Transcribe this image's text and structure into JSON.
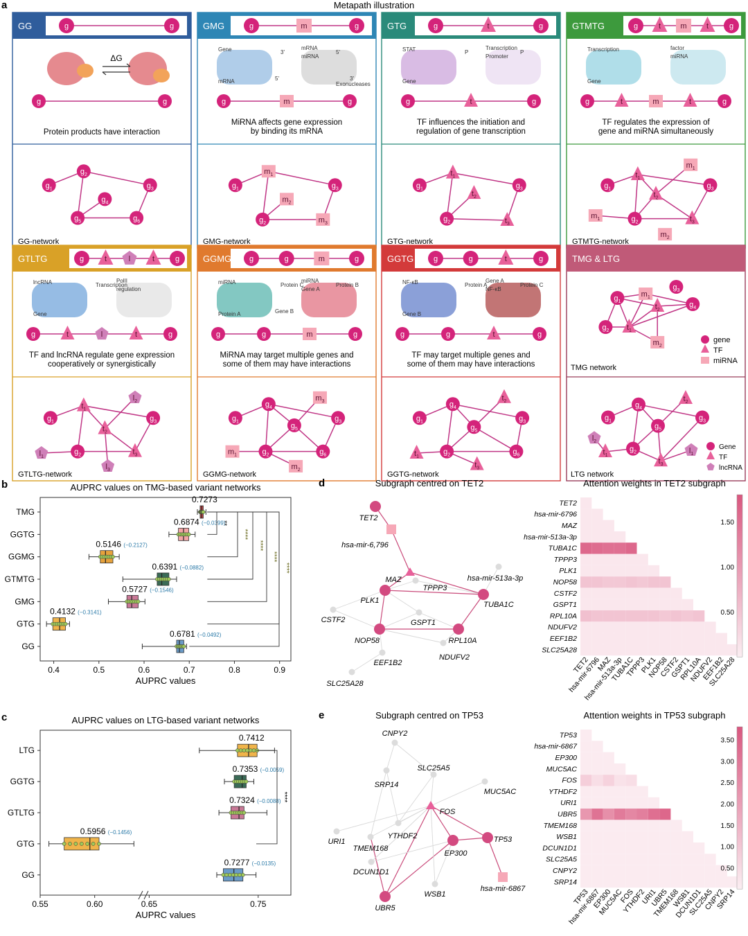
{
  "figure_title": "Metapath illustration",
  "panel_letters": {
    "a": "a",
    "b": "b",
    "c": "c",
    "d": "d",
    "e": "e"
  },
  "colors": {
    "gene": "#d4237a",
    "tf": "#e8609a",
    "mirna": "#f6a8b7",
    "lnc": "#cf7fb8",
    "edge": "#c03585"
  },
  "metapaths": [
    {
      "id": "GG",
      "title": "GG",
      "header_color": "#2f5d9c",
      "border_color": "#2f5d9c",
      "fill_color": "#2f5d9c",
      "path": [
        "g",
        "g"
      ],
      "desc": [
        "Protein products have interaction"
      ],
      "illus_label": "ΔG",
      "network_label": "GG-network",
      "bottom_path": [
        "g",
        "g"
      ]
    },
    {
      "id": "GMG",
      "title": "GMG",
      "header_color": "#2e86b5",
      "border_color": "#2e86b5",
      "fill_color": "#2e86b5",
      "path": [
        "g",
        "m",
        "g"
      ],
      "desc": [
        "MiRNA affects gene expression",
        "by binding its mRNA"
      ],
      "illus_texts": [
        "Gene",
        "mRNA",
        "miRNA",
        "mRNA",
        "3'",
        "5'",
        "5'",
        "3'",
        "Exonucleases"
      ],
      "network_label": "GMG-network",
      "bottom_path": [
        "g",
        "m",
        "g"
      ]
    },
    {
      "id": "GTG",
      "title": "GTG",
      "header_color": "#2a8a7a",
      "border_color": "#2a8a7a",
      "fill_color": "#2a8a7a",
      "path": [
        "g",
        "t",
        "g"
      ],
      "desc": [
        "TF influences the initiation and",
        "regulation of gene transcription"
      ],
      "illus_texts": [
        "STAT",
        "Transcription",
        "Promoter",
        "Gene",
        "P",
        "P"
      ],
      "network_label": "GTG-network",
      "bottom_path": [
        "g",
        "t",
        "g"
      ]
    },
    {
      "id": "GTMTG",
      "title": "GTMTG",
      "header_color": "#3d9a3d",
      "border_color": "#3d9a3d",
      "fill_color": "#3d9a3d",
      "path": [
        "g",
        "t",
        "m",
        "t",
        "g"
      ],
      "desc": [
        "TF regulates the expression of",
        "gene and miRNA simultaneously"
      ],
      "illus_texts": [
        "Transcription",
        "factor",
        "miRNA",
        "Gene"
      ],
      "network_label": "GTMTG-network",
      "bottom_path": [
        "g",
        "t",
        "m",
        "t",
        "g"
      ]
    },
    {
      "id": "GTLTG",
      "title": "GTLTG",
      "header_color": "#d9a127",
      "border_color": "#d9a127",
      "fill_color": "#d9a127",
      "path": [
        "g",
        "t",
        "l",
        "t",
        "g"
      ],
      "desc": [
        "TF and lncRNA regulate gene expression",
        "cooperatively or synergistically"
      ],
      "illus_texts": [
        "lncRNA",
        "PolII",
        "regulation",
        "Gene",
        "Transcription"
      ],
      "network_label": "GTLTG-network",
      "bottom_path": [
        "g",
        "t",
        "l",
        "t",
        "g"
      ]
    },
    {
      "id": "GGMG",
      "title": "GGMG",
      "header_color": "#e07a2e",
      "border_color": "#e07a2e",
      "fill_color": "#e07a2e",
      "path": [
        "g",
        "g",
        "m",
        "g"
      ],
      "desc": [
        "MiRNA may target multiple genes and",
        "some of them may have interactions"
      ],
      "illus_texts": [
        "miRNA",
        "miRNA",
        "Gene A",
        "Protein A",
        "Protein C",
        "Protein B",
        "Gene B"
      ],
      "network_label": "GGMG-network",
      "bottom_path": [
        "g",
        "g",
        "m",
        "g"
      ]
    },
    {
      "id": "GGTG",
      "title": "GGTG",
      "header_color": "#d33a3a",
      "border_color": "#d33a3a",
      "fill_color": "#d33a3a",
      "path": [
        "g",
        "g",
        "t",
        "g"
      ],
      "desc": [
        "TF may target multiple genes and",
        "some of them may have interactions"
      ],
      "illus_texts": [
        "NF-κB",
        "Gene A",
        "NF-κB",
        "Gene B",
        "Protein A",
        "Protein C"
      ],
      "network_label": "GGTG-network",
      "bottom_path": [
        "g",
        "g",
        "t",
        "g"
      ]
    },
    {
      "id": "TMGLTG",
      "title": "TMG & LTG",
      "header_color": "#c05a78",
      "border_color": "#9a3d5a",
      "fill_color": "#c05a78",
      "network_label": "TMG network",
      "bottom_label": "LTG network",
      "legend1": [
        "gene",
        "TF",
        "miRNA"
      ],
      "legend2": [
        "Gene",
        "TF",
        "lncRNA"
      ]
    }
  ],
  "panel_b": {
    "title": "AUPRC values on TMG-based variant networks",
    "xlabel": "AUPRC values",
    "xticks": [
      "0.4",
      "0.5",
      "0.6",
      "0.7",
      "0.8",
      "0.9"
    ],
    "rows": [
      {
        "name": "TMG",
        "median": 0.7273,
        "q1": 0.724,
        "q3": 0.731,
        "min": 0.718,
        "max": 0.737,
        "color": "#c94a4a",
        "label": "0.7273",
        "delta": ""
      },
      {
        "name": "GGTG",
        "median": 0.6874,
        "q1": 0.676,
        "q3": 0.699,
        "min": 0.655,
        "max": 0.713,
        "color": "#f4a6a6",
        "label": "0.6874",
        "delta": "(−0.0399)"
      },
      {
        "name": "GGMG",
        "median": 0.5146,
        "q1": 0.503,
        "q3": 0.531,
        "min": 0.478,
        "max": 0.545,
        "color": "#e6a23c",
        "label": "0.5146",
        "delta": "(−0.2127)"
      },
      {
        "name": "GTMTG",
        "median": 0.6391,
        "q1": 0.629,
        "q3": 0.655,
        "min": 0.553,
        "max": 0.672,
        "color": "#3a6b57",
        "label": "0.6391",
        "delta": "(−0.0882)"
      },
      {
        "name": "GMG",
        "median": 0.5727,
        "q1": 0.562,
        "q3": 0.587,
        "min": 0.521,
        "max": 0.602,
        "color": "#c87896",
        "label": "0.5727",
        "delta": "(−0.1546)"
      },
      {
        "name": "GTG",
        "median": 0.4132,
        "q1": 0.398,
        "q3": 0.426,
        "min": 0.384,
        "max": 0.435,
        "color": "#f0b44a",
        "label": "0.4132",
        "delta": "(−0.3141)"
      },
      {
        "name": "GG",
        "median": 0.6781,
        "q1": 0.672,
        "q3": 0.688,
        "min": 0.596,
        "max": 0.694,
        "color": "#6a9bc8",
        "label": "0.6781",
        "delta": "(−0.0492)"
      }
    ],
    "sig": [
      "**",
      "****",
      "****",
      "****",
      "****"
    ]
  },
  "panel_c": {
    "title": "AUPRC values on LTG-based variant networks",
    "xlabel": "AUPRC values",
    "xticks": [
      "0.55",
      "0.60",
      "0.65",
      "0.75"
    ],
    "rows": [
      {
        "name": "LTG",
        "median": 0.7412,
        "q1": 0.731,
        "q3": 0.749,
        "min": 0.696,
        "max": 0.765,
        "color": "#f0b44a",
        "label": "0.7412",
        "delta": ""
      },
      {
        "name": "GGTG",
        "median": 0.7353,
        "q1": 0.728,
        "q3": 0.739,
        "min": 0.719,
        "max": 0.746,
        "color": "#3a6b57",
        "label": "0.7353",
        "delta": "(−0.0059)"
      },
      {
        "name": "GTLTG",
        "median": 0.7324,
        "q1": 0.725,
        "q3": 0.737,
        "min": 0.714,
        "max": 0.758,
        "color": "#c87896",
        "label": "0.7324",
        "delta": "(−0.0088)"
      },
      {
        "name": "GTG",
        "median": 0.5956,
        "q1": 0.572,
        "q3": 0.604,
        "min": 0.558,
        "max": 0.636,
        "color": "#f0b44a",
        "label": "0.5956",
        "delta": "(−0.1456)"
      },
      {
        "name": "GG",
        "median": 0.7277,
        "q1": 0.718,
        "q3": 0.736,
        "min": 0.712,
        "max": 0.748,
        "color": "#6a9bc8",
        "label": "0.7277",
        "delta": "(−0.0135)"
      }
    ],
    "sig": "****"
  },
  "panel_d": {
    "title": "Subgraph centred on TET2",
    "heat_title": "Attention weights in TET2 subgraph",
    "nodes": [
      "TET2",
      "hsa-mir-6,796",
      "MAZ",
      "hsa-mir-513a-3p",
      "TPPP3",
      "PLK1",
      "TUBA1C",
      "CSTF2",
      "GSPT1",
      "NOP58",
      "RPL10A",
      "NDUFV2",
      "EEF1B2",
      "SLC25A28"
    ],
    "heat_labels": [
      "TET2",
      "hsa-mir-6796",
      "MAZ",
      "hsa-mir-513a-3p",
      "TUBA1C",
      "TPPP3",
      "PLK1",
      "NOP58",
      "CSTF2",
      "GSPT1",
      "RPL10A",
      "NDUFV2",
      "EEF1B2",
      "SLC25A28"
    ],
    "colorbar": [
      "1.50",
      "1.00",
      "0.50"
    ]
  },
  "panel_e": {
    "title": "Subgraph centred on TP53",
    "heat_title": "Attention weights in TP53 subgraph",
    "nodes": [
      "CNPY2",
      "SLC25A5",
      "SRP14",
      "MUC5AC",
      "FOS",
      "URI1",
      "YTHDF2",
      "TMEM168",
      "EP300",
      "TP53",
      "DCUN1D1",
      "hsa-mir-6867",
      "WSB1",
      "UBR5"
    ],
    "heat_labels": [
      "TP53",
      "hsa-mir-6867",
      "EP300",
      "MUC5AC",
      "FOS",
      "YTHDF2",
      "URI1",
      "UBR5",
      "TMEM168",
      "WSB1",
      "DCUN1D1",
      "SLC25A5",
      "CNPY2",
      "SRP14"
    ],
    "colorbar": [
      "3.50",
      "3.00",
      "2.50",
      "2.00",
      "1.50",
      "1.00",
      "0.50"
    ]
  }
}
